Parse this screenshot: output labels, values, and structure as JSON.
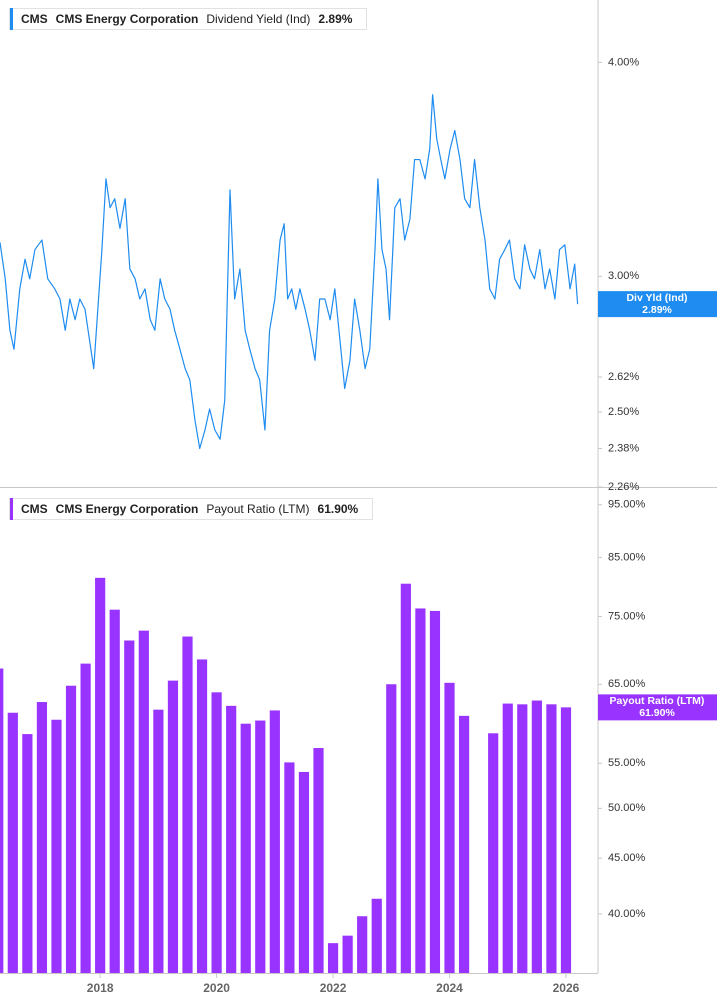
{
  "chart_data": [
    {
      "type": "line",
      "ticker": "CMS",
      "company": "CMS Energy Corporation",
      "log_scale": true,
      "tag_label": "Div Yld (Ind)",
      "xlim": [
        2016.28,
        2026.55
      ],
      "ylim": [
        2.26,
        4.35
      ],
      "yticks": [
        {
          "value": 4,
          "label": "4.00%"
        },
        {
          "value": 3,
          "label": "3.00%"
        },
        {
          "value": 2.62,
          "label": "2.62%"
        },
        {
          "value": 2.5,
          "label": "2.50%"
        },
        {
          "value": 2.38,
          "label": "2.38%"
        },
        {
          "value": 2.26,
          "label": "2.26%"
        }
      ],
      "x": [
        2016.28,
        2016.37,
        2016.45,
        2016.52,
        2016.62,
        2016.71,
        2016.79,
        2016.88,
        2017.0,
        2017.1,
        2017.22,
        2017.31,
        2017.4,
        2017.48,
        2017.57,
        2017.65,
        2017.74,
        2017.82,
        2017.89,
        2017.96,
        2018.03,
        2018.1,
        2018.17,
        2018.25,
        2018.34,
        2018.43,
        2018.51,
        2018.6,
        2018.68,
        2018.77,
        2018.86,
        2018.94,
        2019.03,
        2019.11,
        2019.2,
        2019.28,
        2019.37,
        2019.46,
        2019.54,
        2019.63,
        2019.71,
        2019.8,
        2019.88,
        2019.97,
        2020.06,
        2020.14,
        2020.23,
        2020.31,
        2020.4,
        2020.49,
        2020.57,
        2020.66,
        2020.74,
        2020.83,
        2020.91,
        2021.0,
        2021.09,
        2021.16,
        2021.22,
        2021.29,
        2021.36,
        2021.43,
        2021.52,
        2021.6,
        2021.69,
        2021.77,
        2021.86,
        2021.95,
        2022.03,
        2022.12,
        2022.2,
        2022.29,
        2022.37,
        2022.46,
        2022.55,
        2022.63,
        2022.72,
        2022.77,
        2022.84,
        2022.91,
        2022.97,
        2023.06,
        2023.15,
        2023.23,
        2023.32,
        2023.4,
        2023.49,
        2023.58,
        2023.66,
        2023.71,
        2023.78,
        2023.85,
        2023.92,
        2024.01,
        2024.09,
        2024.18,
        2024.26,
        2024.35,
        2024.43,
        2024.52,
        2024.61,
        2024.69,
        2024.78,
        2024.86,
        2024.95,
        2025.03,
        2025.12,
        2025.21,
        2025.29,
        2025.38,
        2025.46,
        2025.55,
        2025.64,
        2025.72,
        2025.81,
        2025.89,
        2025.98,
        2026.07,
        2026.15,
        2026.2
      ],
      "series": [
        {
          "name": "Dividend Yield (Ind)",
          "color": "#1e8cf0",
          "last_label": "2.89%",
          "values": [
            3.14,
            2.99,
            2.79,
            2.72,
            2.95,
            3.07,
            2.99,
            3.11,
            3.15,
            2.99,
            2.95,
            2.91,
            2.79,
            2.91,
            2.83,
            2.91,
            2.87,
            2.75,
            2.65,
            2.87,
            3.11,
            3.42,
            3.29,
            3.33,
            3.2,
            3.33,
            3.03,
            2.99,
            2.91,
            2.95,
            2.83,
            2.79,
            2.99,
            2.91,
            2.87,
            2.79,
            2.72,
            2.65,
            2.61,
            2.47,
            2.38,
            2.44,
            2.51,
            2.44,
            2.41,
            2.54,
            3.37,
            2.91,
            3.03,
            2.79,
            2.72,
            2.65,
            2.61,
            2.44,
            2.79,
            2.91,
            3.15,
            3.22,
            2.91,
            2.95,
            2.87,
            2.95,
            2.87,
            2.79,
            2.68,
            2.91,
            2.91,
            2.83,
            2.95,
            2.75,
            2.58,
            2.68,
            2.91,
            2.79,
            2.65,
            2.72,
            3.11,
            3.42,
            3.11,
            3.03,
            2.83,
            3.29,
            3.33,
            3.15,
            3.24,
            3.51,
            3.51,
            3.42,
            3.56,
            3.83,
            3.61,
            3.51,
            3.42,
            3.56,
            3.65,
            3.51,
            3.33,
            3.29,
            3.51,
            3.29,
            3.15,
            2.95,
            2.91,
            3.07,
            3.11,
            3.15,
            2.99,
            2.95,
            3.13,
            3.03,
            2.99,
            3.11,
            2.95,
            3.03,
            2.91,
            3.11,
            3.13,
            2.95,
            3.05,
            2.89
          ]
        }
      ]
    },
    {
      "type": "bar",
      "ticker": "CMS",
      "company": "CMS Energy Corporation",
      "log_scale": true,
      "tag_label": "Payout Ratio (LTM)",
      "xlim": [
        2016.28,
        2026.55
      ],
      "xticks": [
        2018,
        2020,
        2022,
        2024,
        2026
      ],
      "ylim": [
        35.3,
        97.6
      ],
      "yticks": [
        {
          "value": 95,
          "label": "95.00%"
        },
        {
          "value": 85,
          "label": "85.00%"
        },
        {
          "value": 75,
          "label": "75.00%"
        },
        {
          "value": 65,
          "label": "65.00%"
        },
        {
          "value": 55,
          "label": "55.00%"
        },
        {
          "value": 50,
          "label": "50.00%"
        },
        {
          "value": 45,
          "label": "45.00%"
        },
        {
          "value": 40,
          "label": "40.00%"
        }
      ],
      "x": [
        2016.25,
        2016.5,
        2016.75,
        2017,
        2017.25,
        2017.5,
        2017.75,
        2018,
        2018.25,
        2018.5,
        2018.75,
        2019,
        2019.25,
        2019.5,
        2019.75,
        2020,
        2020.25,
        2020.5,
        2020.75,
        2021,
        2021.25,
        2021.5,
        2021.75,
        2022,
        2022.25,
        2022.5,
        2022.75,
        2023,
        2023.25,
        2023.5,
        2023.75,
        2024,
        2024.25,
        2024.5,
        2024.75,
        2025,
        2025.25,
        2025.5,
        2025.75,
        2026
      ],
      "series": [
        {
          "name": "Payout Ratio (LTM)",
          "color": "#9933ff",
          "last_label": "61.90%",
          "values": [
            67.2,
            61.2,
            58.5,
            62.6,
            60.3,
            64.8,
            67.9,
            81.4,
            76.1,
            71.3,
            72.8,
            61.6,
            65.5,
            71.9,
            68.5,
            63.9,
            62.1,
            59.8,
            60.2,
            61.5,
            55.1,
            54.0,
            56.8,
            37.6,
            38.2,
            39.8,
            41.3,
            65.0,
            80.4,
            76.3,
            75.9,
            65.2,
            60.8,
            null,
            58.6,
            62.4,
            62.3,
            62.8,
            62.3,
            61.9
          ]
        }
      ]
    }
  ]
}
